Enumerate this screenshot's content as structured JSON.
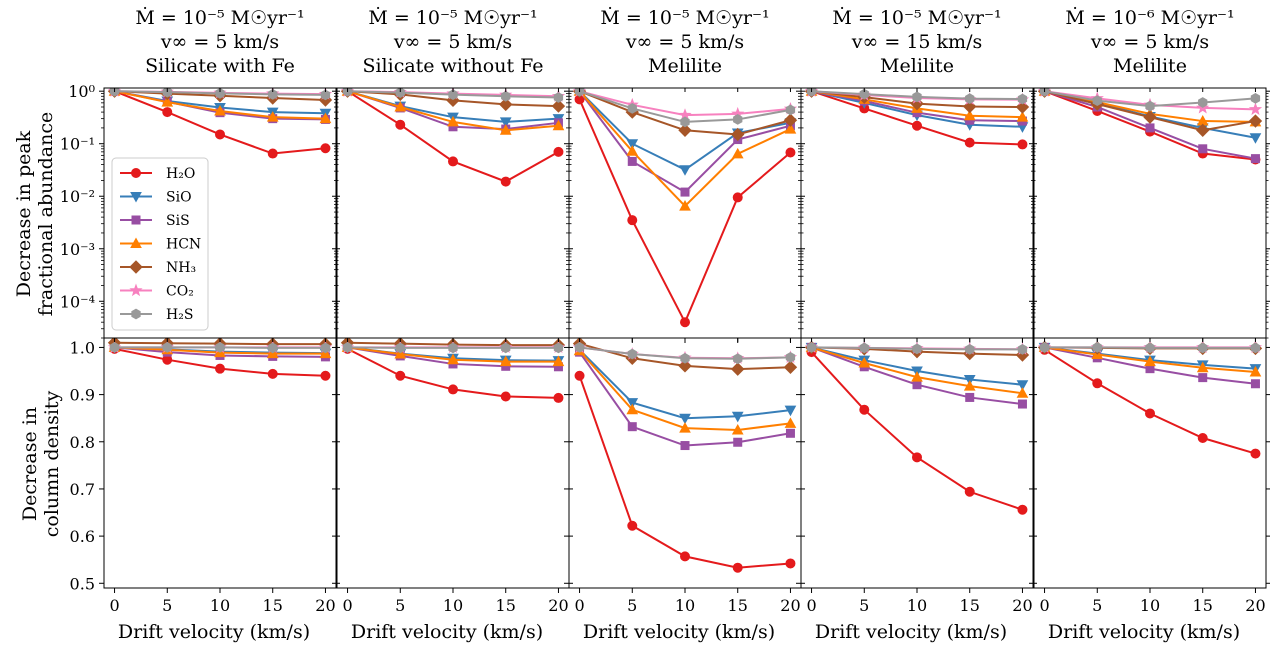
{
  "figure": {
    "top_ylabel_line1": "Decrease in peak",
    "top_ylabel_line2": "fractional abundance",
    "bottom_ylabel_line1": "Decrease in",
    "bottom_ylabel_line2": "column density",
    "xlabel": "Drift velocity (km/s)"
  },
  "legend": {
    "placement": "lower-left of first top panel",
    "entries": [
      {
        "key": "H2O",
        "label": "H₂O",
        "color": "#e41a1c",
        "marker": "circle"
      },
      {
        "key": "SiO",
        "label": "SiO",
        "color": "#377eb8",
        "marker": "triangle-down"
      },
      {
        "key": "SiS",
        "label": "SiS",
        "color": "#984ea3",
        "marker": "square"
      },
      {
        "key": "HCN",
        "label": "HCN",
        "color": "#ff7f00",
        "marker": "triangle-up"
      },
      {
        "key": "NH3",
        "label": "NH₃",
        "color": "#a65628",
        "marker": "diamond"
      },
      {
        "key": "CO2",
        "label": "CO₂",
        "color": "#f781bf",
        "marker": "star"
      },
      {
        "key": "H2S",
        "label": "H₂S",
        "color": "#999999",
        "marker": "hexagon"
      }
    ]
  },
  "chart_data": [
    {
      "type": "line",
      "panel": "top-1",
      "title": [
        "Ṁ = 10⁻⁵ M☉yr⁻¹",
        "v∞ = 5 km/s",
        "Silicate with Fe"
      ],
      "x": [
        0,
        5,
        10,
        15,
        20
      ],
      "yscale": "log",
      "ylim": [
        2e-05,
        1.15
      ],
      "xlabel": "Drift velocity (km/s)",
      "ylabel": "Decrease in peak fractional abundance",
      "yticks": [
        1,
        0.1,
        0.01,
        0.001,
        0.0001
      ],
      "yticklabels": [
        "10⁰",
        "10⁻¹",
        "10⁻²",
        "10⁻³",
        "10⁻⁴"
      ],
      "series": [
        {
          "name": "H2O",
          "values": [
            1.0,
            0.4,
            0.15,
            0.065,
            0.082
          ]
        },
        {
          "name": "SiO",
          "values": [
            1.0,
            0.65,
            0.49,
            0.4,
            0.38
          ]
        },
        {
          "name": "SiS",
          "values": [
            1.0,
            0.63,
            0.39,
            0.3,
            0.29
          ]
        },
        {
          "name": "HCN",
          "values": [
            1.0,
            0.62,
            0.42,
            0.32,
            0.3
          ]
        },
        {
          "name": "NH3",
          "values": [
            1.0,
            0.9,
            0.82,
            0.74,
            0.68
          ]
        },
        {
          "name": "CO2",
          "values": [
            1.0,
            0.97,
            0.93,
            0.9,
            0.88
          ]
        },
        {
          "name": "H2S",
          "values": [
            1.0,
            0.96,
            0.91,
            0.87,
            0.85
          ]
        }
      ]
    },
    {
      "type": "line",
      "panel": "top-2",
      "title": [
        "Ṁ = 10⁻⁵ M☉yr⁻¹",
        "v∞ = 5 km/s",
        "Silicate without Fe"
      ],
      "x": [
        0,
        5,
        10,
        15,
        20
      ],
      "yscale": "log",
      "ylim": [
        2e-05,
        1.15
      ],
      "xlabel": "Drift velocity (km/s)",
      "series": [
        {
          "name": "H2O",
          "values": [
            1.0,
            0.23,
            0.046,
            0.019,
            0.07
          ]
        },
        {
          "name": "SiO",
          "values": [
            1.0,
            0.52,
            0.32,
            0.26,
            0.3
          ]
        },
        {
          "name": "SiS",
          "values": [
            1.0,
            0.48,
            0.21,
            0.19,
            0.25
          ]
        },
        {
          "name": "HCN",
          "values": [
            1.0,
            0.5,
            0.26,
            0.18,
            0.22
          ]
        },
        {
          "name": "NH3",
          "values": [
            1.0,
            0.87,
            0.67,
            0.56,
            0.52
          ]
        },
        {
          "name": "CO2",
          "values": [
            1.0,
            0.96,
            0.9,
            0.85,
            0.8
          ]
        },
        {
          "name": "H2S",
          "values": [
            1.0,
            0.94,
            0.86,
            0.8,
            0.76
          ]
        }
      ]
    },
    {
      "type": "line",
      "panel": "top-3",
      "title": [
        "Ṁ = 10⁻⁵ M☉yr⁻¹",
        "v∞ = 5 km/s",
        "Melilite"
      ],
      "x": [
        0,
        5,
        10,
        15,
        20
      ],
      "yscale": "log",
      "ylim": [
        2e-05,
        1.15
      ],
      "xlabel": "Drift velocity (km/s)",
      "series": [
        {
          "name": "H2O",
          "values": [
            0.7,
            0.0035,
            4e-05,
            0.0095,
            0.068
          ]
        },
        {
          "name": "SiO",
          "values": [
            1.0,
            0.1,
            0.032,
            0.16,
            0.25
          ]
        },
        {
          "name": "SiS",
          "values": [
            1.0,
            0.046,
            0.012,
            0.12,
            0.22
          ]
        },
        {
          "name": "HCN",
          "values": [
            1.0,
            0.072,
            0.0065,
            0.064,
            0.19
          ]
        },
        {
          "name": "NH3",
          "values": [
            1.0,
            0.4,
            0.18,
            0.15,
            0.28
          ]
        },
        {
          "name": "CO2",
          "values": [
            1.0,
            0.55,
            0.35,
            0.37,
            0.46
          ]
        },
        {
          "name": "H2S",
          "values": [
            1.0,
            0.47,
            0.26,
            0.29,
            0.44
          ]
        }
      ]
    },
    {
      "type": "line",
      "panel": "top-4",
      "title": [
        "Ṁ = 10⁻⁵ M☉yr⁻¹",
        "v∞ = 15 km/s",
        "Melilite"
      ],
      "x": [
        0,
        5,
        10,
        15,
        20
      ],
      "yscale": "log",
      "ylim": [
        2e-05,
        1.15
      ],
      "xlabel": "Drift velocity (km/s)",
      "series": [
        {
          "name": "H2O",
          "values": [
            1.0,
            0.47,
            0.22,
            0.105,
            0.097
          ]
        },
        {
          "name": "SiO",
          "values": [
            1.0,
            0.6,
            0.35,
            0.23,
            0.21
          ]
        },
        {
          "name": "SiS",
          "values": [
            1.0,
            0.65,
            0.39,
            0.28,
            0.27
          ]
        },
        {
          "name": "HCN",
          "values": [
            1.0,
            0.7,
            0.47,
            0.34,
            0.32
          ]
        },
        {
          "name": "NH3",
          "values": [
            1.0,
            0.77,
            0.58,
            0.51,
            0.5
          ]
        },
        {
          "name": "CO2",
          "values": [
            1.0,
            0.85,
            0.74,
            0.7,
            0.69
          ]
        },
        {
          "name": "H2S",
          "values": [
            1.0,
            0.88,
            0.78,
            0.72,
            0.71
          ]
        }
      ]
    },
    {
      "type": "line",
      "panel": "top-5",
      "title": [
        "Ṁ = 10⁻⁶ M☉yr⁻¹",
        "v∞ = 5 km/s",
        "Melilite"
      ],
      "x": [
        0,
        5,
        10,
        15,
        20
      ],
      "yscale": "log",
      "ylim": [
        2e-05,
        1.15
      ],
      "xlabel": "Drift velocity (km/s)",
      "series": [
        {
          "name": "H2O",
          "values": [
            1.0,
            0.42,
            0.17,
            0.065,
            0.05
          ]
        },
        {
          "name": "SiO",
          "values": [
            1.0,
            0.6,
            0.33,
            0.2,
            0.13
          ]
        },
        {
          "name": "SiS",
          "values": [
            1.0,
            0.5,
            0.2,
            0.08,
            0.052
          ]
        },
        {
          "name": "HCN",
          "values": [
            1.0,
            0.62,
            0.37,
            0.27,
            0.26
          ]
        },
        {
          "name": "NH3",
          "values": [
            1.0,
            0.57,
            0.32,
            0.18,
            0.27
          ]
        },
        {
          "name": "CO2",
          "values": [
            1.0,
            0.73,
            0.55,
            0.48,
            0.45
          ]
        },
        {
          "name": "H2S",
          "values": [
            1.0,
            0.66,
            0.52,
            0.61,
            0.73
          ]
        }
      ]
    },
    {
      "type": "line",
      "panel": "bottom-1",
      "x": [
        0,
        5,
        10,
        15,
        20
      ],
      "yscale": "linear",
      "ylim": [
        0.49,
        1.02
      ],
      "xlabel": "Drift velocity (km/s)",
      "ylabel": "Decrease in column density",
      "yticks": [
        0.5,
        0.6,
        0.7,
        0.8,
        0.9,
        1.0
      ],
      "yticklabels": [
        "0.5",
        "0.6",
        "0.7",
        "0.8",
        "0.9",
        "1.0"
      ],
      "xticklabels": [
        "0",
        "5",
        "10",
        "15",
        "20"
      ],
      "series": [
        {
          "name": "H2O",
          "values": [
            0.997,
            0.974,
            0.955,
            0.944,
            0.94
          ]
        },
        {
          "name": "SiO",
          "values": [
            1.0,
            0.996,
            0.991,
            0.989,
            0.988
          ]
        },
        {
          "name": "SiS",
          "values": [
            1.0,
            0.99,
            0.983,
            0.981,
            0.98
          ]
        },
        {
          "name": "HCN",
          "values": [
            1.0,
            0.995,
            0.989,
            0.987,
            0.987
          ]
        },
        {
          "name": "NH3",
          "values": [
            1.01,
            1.009,
            1.008,
            1.007,
            1.007
          ]
        },
        {
          "name": "CO2",
          "values": [
            1.0,
            1.0,
            1.0,
            1.0,
            1.0
          ]
        },
        {
          "name": "H2S",
          "values": [
            1.0,
            1.0,
            1.0,
            0.999,
            0.999
          ]
        }
      ]
    },
    {
      "type": "line",
      "panel": "bottom-2",
      "x": [
        0,
        5,
        10,
        15,
        20
      ],
      "yscale": "linear",
      "ylim": [
        0.49,
        1.02
      ],
      "xlabel": "Drift velocity (km/s)",
      "xticklabels": [
        "0",
        "5",
        "10",
        "15",
        "20"
      ],
      "series": [
        {
          "name": "H2O",
          "values": [
            0.997,
            0.94,
            0.911,
            0.896,
            0.893
          ]
        },
        {
          "name": "SiO",
          "values": [
            1.0,
            0.987,
            0.977,
            0.973,
            0.972
          ]
        },
        {
          "name": "SiS",
          "values": [
            1.0,
            0.982,
            0.965,
            0.96,
            0.959
          ]
        },
        {
          "name": "HCN",
          "values": [
            1.0,
            0.986,
            0.974,
            0.97,
            0.97
          ]
        },
        {
          "name": "NH3",
          "values": [
            1.01,
            1.008,
            1.006,
            1.005,
            1.005
          ]
        },
        {
          "name": "CO2",
          "values": [
            1.0,
            1.0,
            1.0,
            1.0,
            1.0
          ]
        },
        {
          "name": "H2S",
          "values": [
            1.0,
            0.999,
            0.999,
            0.999,
            0.999
          ]
        }
      ]
    },
    {
      "type": "line",
      "panel": "bottom-3",
      "x": [
        0,
        5,
        10,
        15,
        20
      ],
      "yscale": "linear",
      "ylim": [
        0.49,
        1.02
      ],
      "xlabel": "Drift velocity (km/s)",
      "xticklabels": [
        "0",
        "5",
        "10",
        "15",
        "20"
      ],
      "series": [
        {
          "name": "H2O",
          "values": [
            0.94,
            0.622,
            0.557,
            0.533,
            0.542
          ]
        },
        {
          "name": "SiO",
          "values": [
            0.995,
            0.883,
            0.85,
            0.854,
            0.867
          ]
        },
        {
          "name": "SiS",
          "values": [
            0.99,
            0.832,
            0.792,
            0.799,
            0.818
          ]
        },
        {
          "name": "HCN",
          "values": [
            0.993,
            0.868,
            0.829,
            0.825,
            0.839
          ]
        },
        {
          "name": "NH3",
          "values": [
            1.008,
            0.977,
            0.961,
            0.954,
            0.958
          ]
        },
        {
          "name": "CO2",
          "values": [
            1.0,
            0.986,
            0.978,
            0.977,
            0.979
          ]
        },
        {
          "name": "H2S",
          "values": [
            1.0,
            0.986,
            0.977,
            0.976,
            0.979
          ]
        }
      ]
    },
    {
      "type": "line",
      "panel": "bottom-4",
      "x": [
        0,
        5,
        10,
        15,
        20
      ],
      "yscale": "linear",
      "ylim": [
        0.49,
        1.02
      ],
      "xlabel": "Drift velocity (km/s)",
      "xticklabels": [
        "0",
        "5",
        "10",
        "15",
        "20"
      ],
      "series": [
        {
          "name": "H2O",
          "values": [
            0.99,
            0.868,
            0.767,
            0.694,
            0.656
          ]
        },
        {
          "name": "SiO",
          "values": [
            1.0,
            0.973,
            0.95,
            0.932,
            0.921
          ]
        },
        {
          "name": "SiS",
          "values": [
            1.0,
            0.959,
            0.921,
            0.894,
            0.88
          ]
        },
        {
          "name": "HCN",
          "values": [
            1.0,
            0.967,
            0.937,
            0.918,
            0.903
          ]
        },
        {
          "name": "NH3",
          "values": [
            1.0,
            0.997,
            0.991,
            0.987,
            0.984
          ]
        },
        {
          "name": "CO2",
          "values": [
            1.0,
            0.999,
            0.998,
            0.997,
            0.996
          ]
        },
        {
          "name": "H2S",
          "values": [
            1.0,
            0.999,
            0.997,
            0.996,
            0.996
          ]
        }
      ]
    },
    {
      "type": "line",
      "panel": "bottom-5",
      "x": [
        0,
        5,
        10,
        15,
        20
      ],
      "yscale": "linear",
      "ylim": [
        0.49,
        1.02
      ],
      "xlabel": "Drift velocity (km/s)",
      "xticklabels": [
        "0",
        "5",
        "10",
        "15",
        "20"
      ],
      "series": [
        {
          "name": "H2O",
          "values": [
            0.995,
            0.924,
            0.86,
            0.808,
            0.775
          ]
        },
        {
          "name": "SiO",
          "values": [
            1.0,
            0.987,
            0.973,
            0.963,
            0.955
          ]
        },
        {
          "name": "SiS",
          "values": [
            1.0,
            0.978,
            0.955,
            0.936,
            0.923
          ]
        },
        {
          "name": "HCN",
          "values": [
            1.0,
            0.985,
            0.97,
            0.957,
            0.948
          ]
        },
        {
          "name": "NH3",
          "values": [
            1.0,
            0.999,
            0.998,
            0.998,
            0.998
          ]
        },
        {
          "name": "CO2",
          "values": [
            1.0,
            1.0,
            1.0,
            1.0,
            1.0
          ]
        },
        {
          "name": "H2S",
          "values": [
            1.0,
            1.0,
            0.999,
            0.999,
            0.999
          ]
        }
      ]
    }
  ]
}
